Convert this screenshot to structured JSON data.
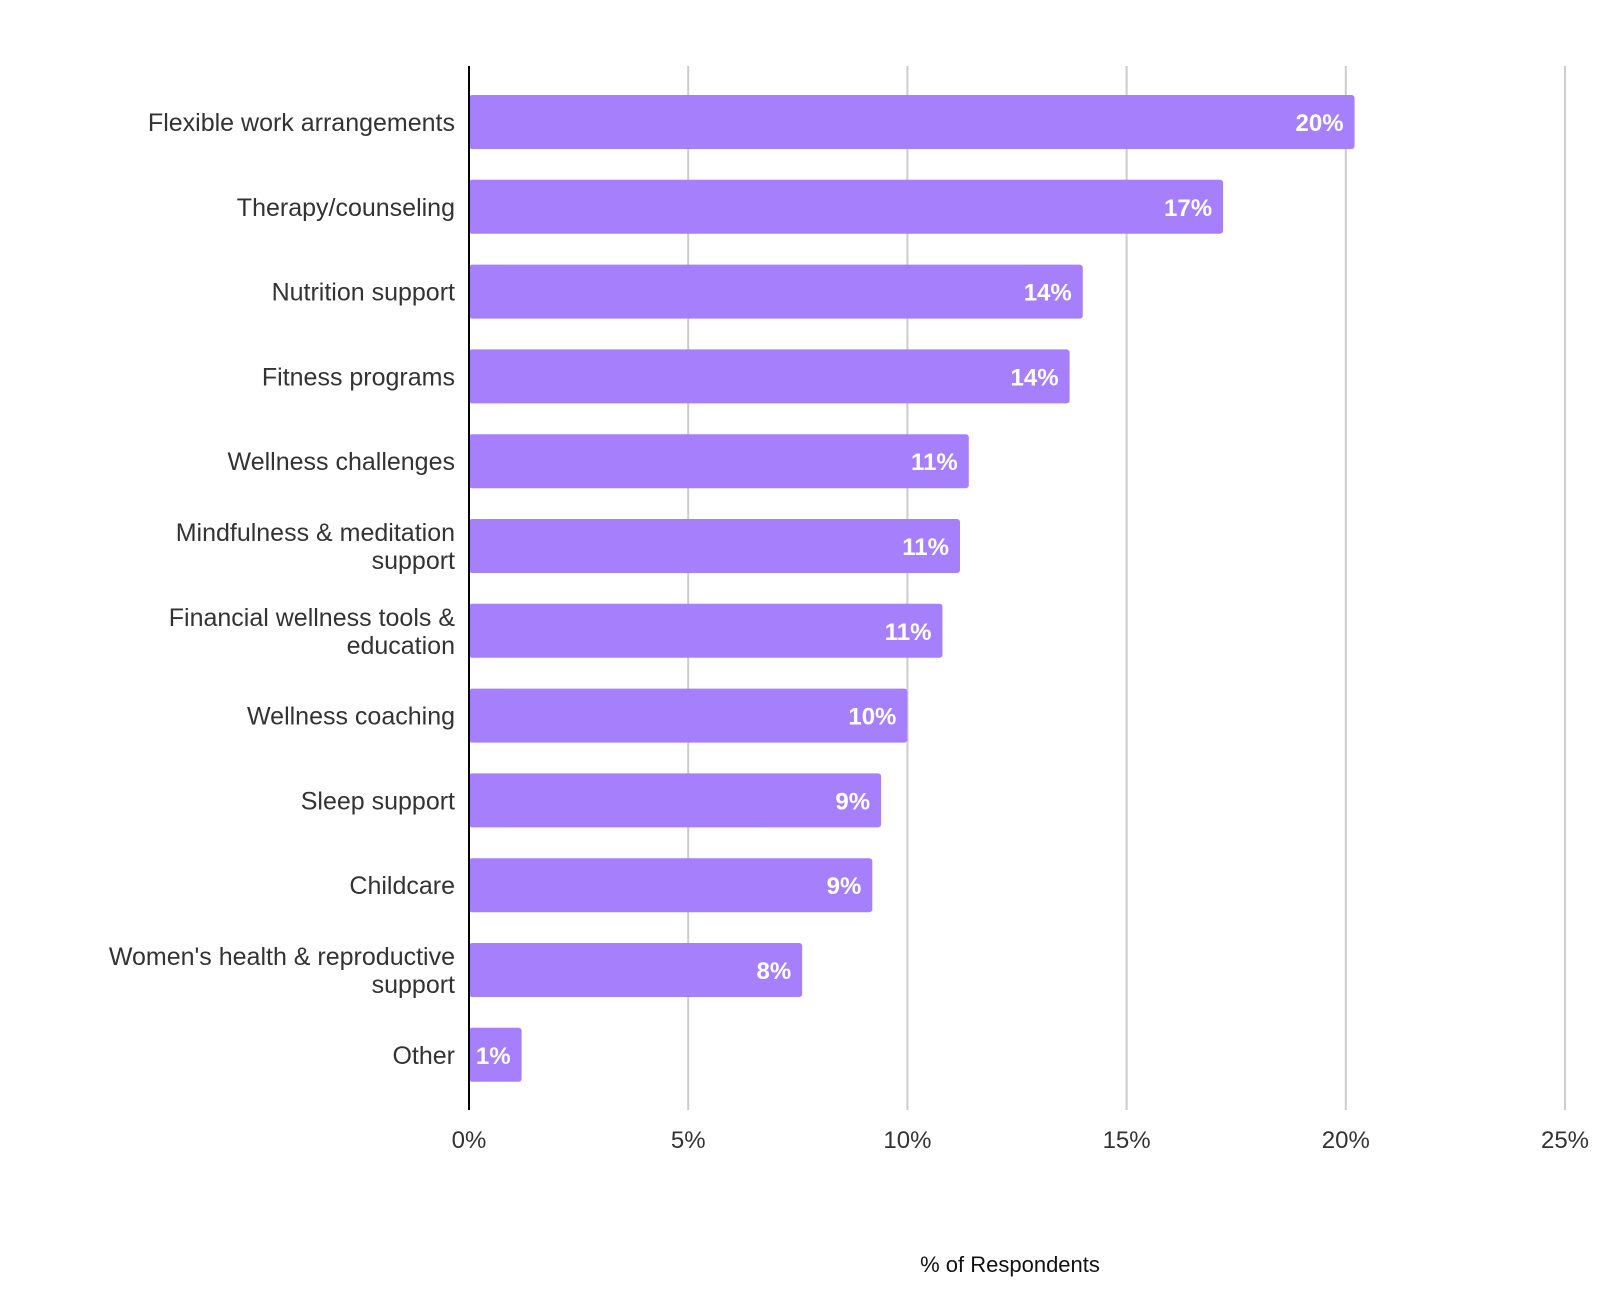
{
  "chart_data": {
    "type": "bar",
    "orientation": "horizontal",
    "title": "",
    "xlabel": "% of Respondents",
    "ylabel": "",
    "xlim": [
      0,
      25
    ],
    "x_ticks": [
      0,
      5,
      10,
      15,
      20,
      25
    ],
    "x_tick_labels": [
      "0%",
      "5%",
      "10%",
      "15%",
      "20%",
      "25%"
    ],
    "grid": "vertical",
    "legend": "none",
    "categories": [
      [
        "Flexible work arrangements"
      ],
      [
        "Therapy/counseling"
      ],
      [
        "Nutrition support"
      ],
      [
        "Fitness programs"
      ],
      [
        "Wellness challenges"
      ],
      [
        "Mindfulness & meditation",
        "support"
      ],
      [
        "Financial wellness tools &",
        "education"
      ],
      [
        "Wellness coaching"
      ],
      [
        "Sleep support"
      ],
      [
        "Childcare"
      ],
      [
        "Women's health & reproductive",
        "support"
      ],
      [
        "Other"
      ]
    ],
    "values": [
      20.2,
      17.2,
      14.0,
      13.7,
      11.4,
      11.2,
      10.8,
      10.0,
      9.4,
      9.2,
      7.6,
      1.2
    ],
    "data_labels": [
      "20%",
      "17%",
      "14%",
      "14%",
      "11%",
      "11%",
      "11%",
      "10%",
      "9%",
      "9%",
      "8%",
      "1%"
    ],
    "colors": {
      "bar": "#a67ffd",
      "grid": "#cccccc",
      "axis": "#000000",
      "label_text": "#333333",
      "data_label_text": "#ffffff"
    }
  }
}
